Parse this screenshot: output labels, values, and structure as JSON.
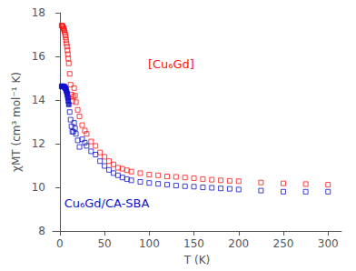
{
  "chart_data": {
    "type": "scatter",
    "xlabel": "T (K)",
    "ylabel": "χMT (cm³ mol⁻¹ K)",
    "xlim": [
      -8,
      315
    ],
    "ylim": [
      8,
      18
    ],
    "xticks": [
      0,
      50,
      100,
      150,
      200,
      250,
      300
    ],
    "yticks": [
      8,
      10,
      12,
      14,
      16,
      18
    ],
    "grid": false,
    "series": [
      {
        "color": "#FF1111",
        "marker": "square-open",
        "x": [
          2.0,
          2.5,
          3.0,
          3.5,
          4.0,
          4.5,
          5.0,
          5.5,
          6.0,
          6.5,
          7.0,
          7.5,
          8.0,
          8.5,
          9.0,
          9.5,
          10.0,
          11.0,
          12.0,
          13.0,
          14.0,
          15.0,
          16.0,
          17.0,
          18.0,
          20.0,
          22.0,
          25.0,
          28.0,
          30.0,
          35.0,
          40.0,
          45.0,
          50.0,
          55.0,
          60.0,
          65.0,
          70.0,
          75.0,
          80.0,
          90.0,
          100.0,
          110.0,
          120.0,
          130.0,
          140.0,
          150.0,
          160.0,
          170.0,
          180.0,
          190.0,
          200.0,
          225.0,
          250.0,
          275.0,
          300.0
        ],
        "values": [
          17.42,
          17.4,
          17.38,
          17.35,
          17.3,
          17.25,
          17.18,
          17.1,
          17.0,
          16.88,
          16.75,
          16.6,
          16.45,
          16.28,
          16.1,
          15.9,
          15.68,
          15.2,
          14.7,
          14.25,
          13.95,
          14.15,
          14.55,
          14.2,
          13.9,
          13.55,
          13.25,
          12.85,
          12.6,
          12.45,
          12.1,
          11.9,
          11.6,
          11.4,
          11.2,
          11.05,
          10.9,
          10.85,
          10.78,
          10.72,
          10.65,
          10.58,
          10.55,
          10.5,
          10.48,
          10.45,
          10.42,
          10.38,
          10.35,
          10.32,
          10.3,
          10.28,
          10.22,
          10.18,
          10.15,
          10.12
        ]
      },
      {
        "color": "#1111CC",
        "marker": "square",
        "x": [
          2.0,
          2.5,
          3.0,
          3.5,
          4.0,
          4.5,
          5.0,
          5.5,
          6.0,
          6.5,
          7.0,
          7.5,
          8.0,
          8.5,
          9.0,
          9.5,
          10.0
        ],
        "values": [
          14.62,
          14.63,
          14.63,
          14.63,
          14.63,
          14.62,
          14.61,
          14.59,
          14.56,
          14.52,
          14.47,
          14.4,
          14.32,
          14.22,
          14.1,
          13.96,
          13.8
        ]
      },
      {
        "color": "#1111CC",
        "marker": "square-open",
        "x": [
          11.0,
          12.0,
          13.0,
          14.0,
          15.0,
          16.0,
          17.0,
          18.0,
          20.0,
          22.0,
          25.0,
          28.0,
          30.0,
          35.0,
          40.0,
          45.0,
          50.0,
          55.0,
          60.0,
          65.0,
          70.0,
          75.0,
          80.0,
          90.0,
          100.0,
          110.0,
          120.0,
          130.0,
          140.0,
          150.0,
          160.0,
          170.0,
          180.0,
          190.0,
          200.0,
          225.0,
          250.0,
          275.0,
          300.0
        ],
        "values": [
          13.45,
          13.1,
          12.8,
          12.55,
          12.55,
          12.95,
          12.7,
          12.45,
          12.15,
          11.85,
          12.2,
          12.05,
          11.9,
          11.65,
          11.5,
          11.2,
          10.98,
          10.8,
          10.65,
          10.55,
          10.45,
          10.38,
          10.32,
          10.25,
          10.2,
          10.16,
          10.12,
          10.08,
          10.05,
          10.03,
          10.0,
          9.98,
          9.95,
          9.93,
          9.9,
          9.85,
          9.8,
          9.8,
          9.8
        ]
      }
    ],
    "annotations": [
      {
        "text": "[Cu₆Gd]",
        "color": "#FF1111"
      },
      {
        "text": "Cu₆Gd/CA-SBA",
        "color": "#1111CC"
      }
    ]
  }
}
